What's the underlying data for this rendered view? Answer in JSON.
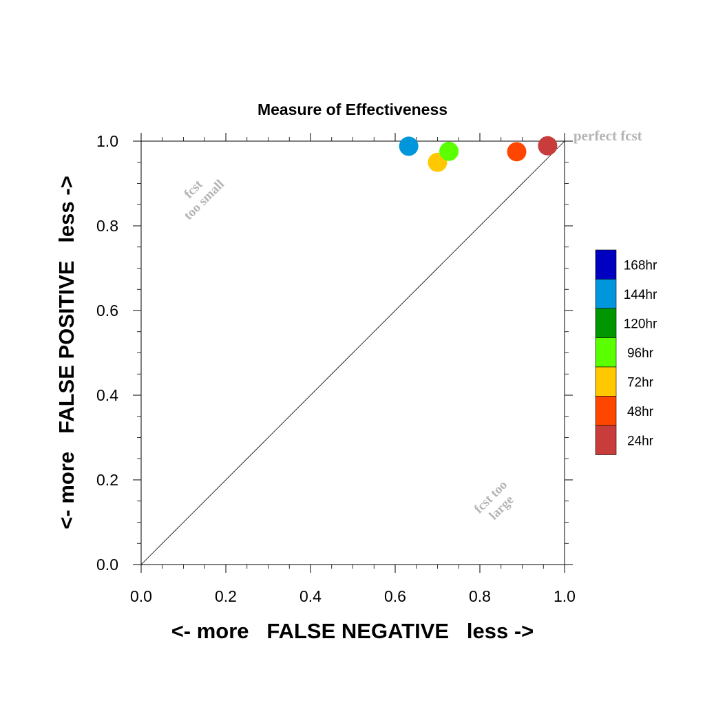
{
  "chart_data": {
    "type": "scatter",
    "title": "Measure of Effectiveness",
    "xlabel": "<- more   FALSE NEGATIVE   less ->",
    "ylabel": "<- more   FALSE POSITIVE   less ->",
    "xlim": [
      0.0,
      1.0
    ],
    "ylim": [
      0.0,
      1.0
    ],
    "xticks": [
      0.0,
      0.2,
      0.4,
      0.6,
      0.8,
      1.0
    ],
    "yticks": [
      0.0,
      0.2,
      0.4,
      0.6,
      0.8,
      1.0
    ],
    "xtick_labels": [
      "0.0",
      "0.2",
      "0.4",
      "0.6",
      "0.8",
      "1.0"
    ],
    "ytick_labels": [
      "0.0",
      "0.2",
      "0.4",
      "0.6",
      "0.8",
      "1.0"
    ],
    "grid": false,
    "diagonal_line": true,
    "legend_position": "right",
    "legend": [
      {
        "label": "168hr",
        "color": "#0000c0"
      },
      {
        "label": "144hr",
        "color": "#0096dc"
      },
      {
        "label": "120hr",
        "color": "#009600"
      },
      {
        "label": "96hr",
        "color": "#5aff00"
      },
      {
        "label": "72hr",
        "color": "#ffc800"
      },
      {
        "label": "48hr",
        "color": "#ff4600"
      },
      {
        "label": "24hr",
        "color": "#c83c3c"
      }
    ],
    "points": [
      {
        "series": "144hr",
        "x": 0.632,
        "y": 0.988,
        "color": "#0096dc"
      },
      {
        "series": "72hr",
        "x": 0.7,
        "y": 0.95,
        "color": "#ffc800"
      },
      {
        "series": "96hr",
        "x": 0.727,
        "y": 0.976,
        "color": "#5aff00"
      },
      {
        "series": "48hr",
        "x": 0.887,
        "y": 0.975,
        "color": "#ff4600"
      },
      {
        "series": "24hr",
        "x": 0.96,
        "y": 0.989,
        "color": "#c83c3c"
      }
    ],
    "annotations": {
      "perfect": "perfect fcst",
      "too_small_line1": "fcst",
      "too_small_line2": "too small",
      "too_large_line1": "fcst too",
      "too_large_line2": "large"
    }
  }
}
